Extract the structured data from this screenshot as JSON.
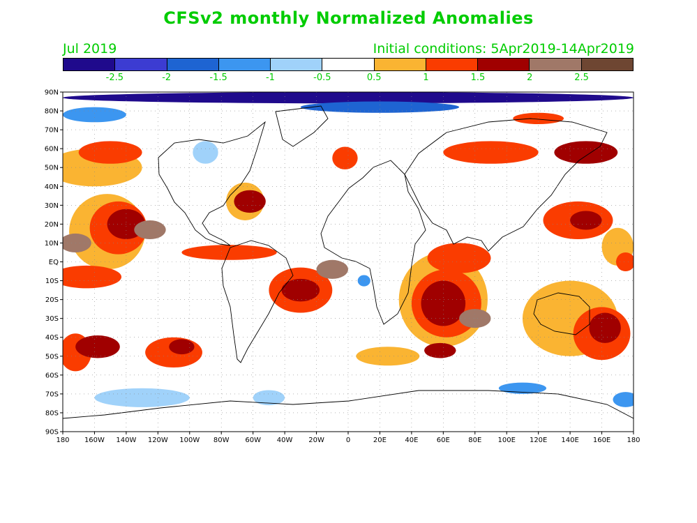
{
  "title": "CFSv2 monthly Normalized Anomalies",
  "valid_month": "Jul 2019",
  "initial_conditions": "Initial conditions: 5Apr2019-14Apr2019",
  "colorbar": {
    "colors": [
      "#1f0a8c",
      "#3c3cd2",
      "#1e64d2",
      "#3c96f0",
      "#a0d2fa",
      "#ffffff",
      "#fab432",
      "#fa3c00",
      "#a00000",
      "#a07868",
      "#6e4632"
    ],
    "labels": [
      "-2.5",
      "-2",
      "-1.5",
      "-1",
      "-0.5",
      "0.5",
      "1",
      "1.5",
      "2",
      "2.5"
    ]
  },
  "map": {
    "lat_labels": [
      "90N",
      "80N",
      "70N",
      "60N",
      "50N",
      "40N",
      "30N",
      "20N",
      "10N",
      "EQ",
      "10S",
      "20S",
      "30S",
      "40S",
      "50S",
      "60S",
      "70S",
      "80S",
      "90S"
    ],
    "lon_labels": [
      "180",
      "160W",
      "140W",
      "120W",
      "100W",
      "80W",
      "60W",
      "40W",
      "20W",
      "0",
      "20E",
      "40E",
      "60E",
      "80E",
      "100E",
      "120E",
      "140E",
      "160E",
      "180"
    ],
    "lon_range": [
      -180,
      180
    ],
    "lat_range": [
      -90,
      90
    ],
    "gridlines": "dotted",
    "anomaly_regions": [
      {
        "lon": -152,
        "lat": 16,
        "rx": 24,
        "ry": 20,
        "level": 1
      },
      {
        "lon": -145,
        "lat": 18,
        "rx": 18,
        "ry": 14,
        "level": 2
      },
      {
        "lon": -140,
        "lat": 20,
        "rx": 12,
        "ry": 8,
        "level": 3
      },
      {
        "lon": -125,
        "lat": 17,
        "rx": 10,
        "ry": 5,
        "level": 4
      },
      {
        "lon": -165,
        "lat": -8,
        "rx": 22,
        "ry": 6,
        "level": 2
      },
      {
        "lon": -172,
        "lat": 10,
        "rx": 10,
        "ry": 5,
        "level": 4
      },
      {
        "lon": -160,
        "lat": 50,
        "rx": 30,
        "ry": 10,
        "level": 1
      },
      {
        "lon": -150,
        "lat": 58,
        "rx": 20,
        "ry": 6,
        "level": 2
      },
      {
        "lon": -172,
        "lat": -48,
        "rx": 10,
        "ry": 10,
        "level": 2
      },
      {
        "lon": -158,
        "lat": -45,
        "rx": 14,
        "ry": 6,
        "level": 3
      },
      {
        "lon": -110,
        "lat": -48,
        "rx": 18,
        "ry": 8,
        "level": 2
      },
      {
        "lon": -105,
        "lat": -45,
        "rx": 8,
        "ry": 4,
        "level": 3
      },
      {
        "lon": -65,
        "lat": 32,
        "rx": 12,
        "ry": 10,
        "level": 1
      },
      {
        "lon": -62,
        "lat": 32,
        "rx": 10,
        "ry": 6,
        "level": 3
      },
      {
        "lon": -75,
        "lat": 5,
        "rx": 30,
        "ry": 4,
        "level": 2
      },
      {
        "lon": -30,
        "lat": -15,
        "rx": 20,
        "ry": 12,
        "level": 2
      },
      {
        "lon": -30,
        "lat": -15,
        "rx": 12,
        "ry": 6,
        "level": 3
      },
      {
        "lon": -10,
        "lat": -4,
        "rx": 10,
        "ry": 5,
        "level": 4
      },
      {
        "lon": 60,
        "lat": -20,
        "rx": 28,
        "ry": 25,
        "level": 1
      },
      {
        "lon": 62,
        "lat": -22,
        "rx": 22,
        "ry": 18,
        "level": 2
      },
      {
        "lon": 60,
        "lat": -22,
        "rx": 14,
        "ry": 12,
        "level": 3
      },
      {
        "lon": 80,
        "lat": -30,
        "rx": 10,
        "ry": 5,
        "level": 4
      },
      {
        "lon": 70,
        "lat": 2,
        "rx": 20,
        "ry": 8,
        "level": 2
      },
      {
        "lon": 140,
        "lat": -30,
        "rx": 30,
        "ry": 20,
        "level": 1
      },
      {
        "lon": 160,
        "lat": -38,
        "rx": 18,
        "ry": 14,
        "level": 2
      },
      {
        "lon": 162,
        "lat": -35,
        "rx": 10,
        "ry": 8,
        "level": 3
      },
      {
        "lon": 145,
        "lat": 22,
        "rx": 22,
        "ry": 10,
        "level": 2
      },
      {
        "lon": 150,
        "lat": 22,
        "rx": 10,
        "ry": 5,
        "level": 3
      },
      {
        "lon": 90,
        "lat": 58,
        "rx": 30,
        "ry": 6,
        "level": 2
      },
      {
        "lon": 150,
        "lat": 58,
        "rx": 20,
        "ry": 6,
        "level": 3
      },
      {
        "lon": 120,
        "lat": 76,
        "rx": 16,
        "ry": 3,
        "level": 2
      },
      {
        "lon": -2,
        "lat": 55,
        "rx": 8,
        "ry": 6,
        "level": 2
      },
      {
        "lon": 170,
        "lat": 8,
        "rx": 10,
        "ry": 10,
        "level": 1
      },
      {
        "lon": 175,
        "lat": 0,
        "rx": 6,
        "ry": 5,
        "level": 2
      },
      {
        "lon": -100,
        "lat": -20,
        "rx": 20,
        "ry": 6,
        "level": 0
      },
      {
        "lon": 25,
        "lat": -50,
        "rx": 20,
        "ry": 5,
        "level": 1
      },
      {
        "lon": 58,
        "lat": -47,
        "rx": 10,
        "ry": 4,
        "level": 3
      },
      {
        "lon": 10,
        "lat": -10,
        "rx": 4,
        "ry": 3,
        "level": -2
      },
      {
        "lon": -90,
        "lat": 58,
        "rx": 8,
        "ry": 6,
        "level": -1
      },
      {
        "lon": -130,
        "lat": -72,
        "rx": 30,
        "ry": 5,
        "level": -1
      },
      {
        "lon": -50,
        "lat": -72,
        "rx": 10,
        "ry": 4,
        "level": -1
      },
      {
        "lon": 110,
        "lat": -67,
        "rx": 15,
        "ry": 3,
        "level": -2
      },
      {
        "lon": 175,
        "lat": -73,
        "rx": 8,
        "ry": 4,
        "level": -2
      },
      {
        "lon": 0,
        "lat": 87,
        "rx": 180,
        "ry": 3,
        "level": -5
      },
      {
        "lon": 20,
        "lat": 82,
        "rx": 50,
        "ry": 3,
        "level": -3
      },
      {
        "lon": -160,
        "lat": 78,
        "rx": 20,
        "ry": 4,
        "level": -2
      }
    ]
  }
}
